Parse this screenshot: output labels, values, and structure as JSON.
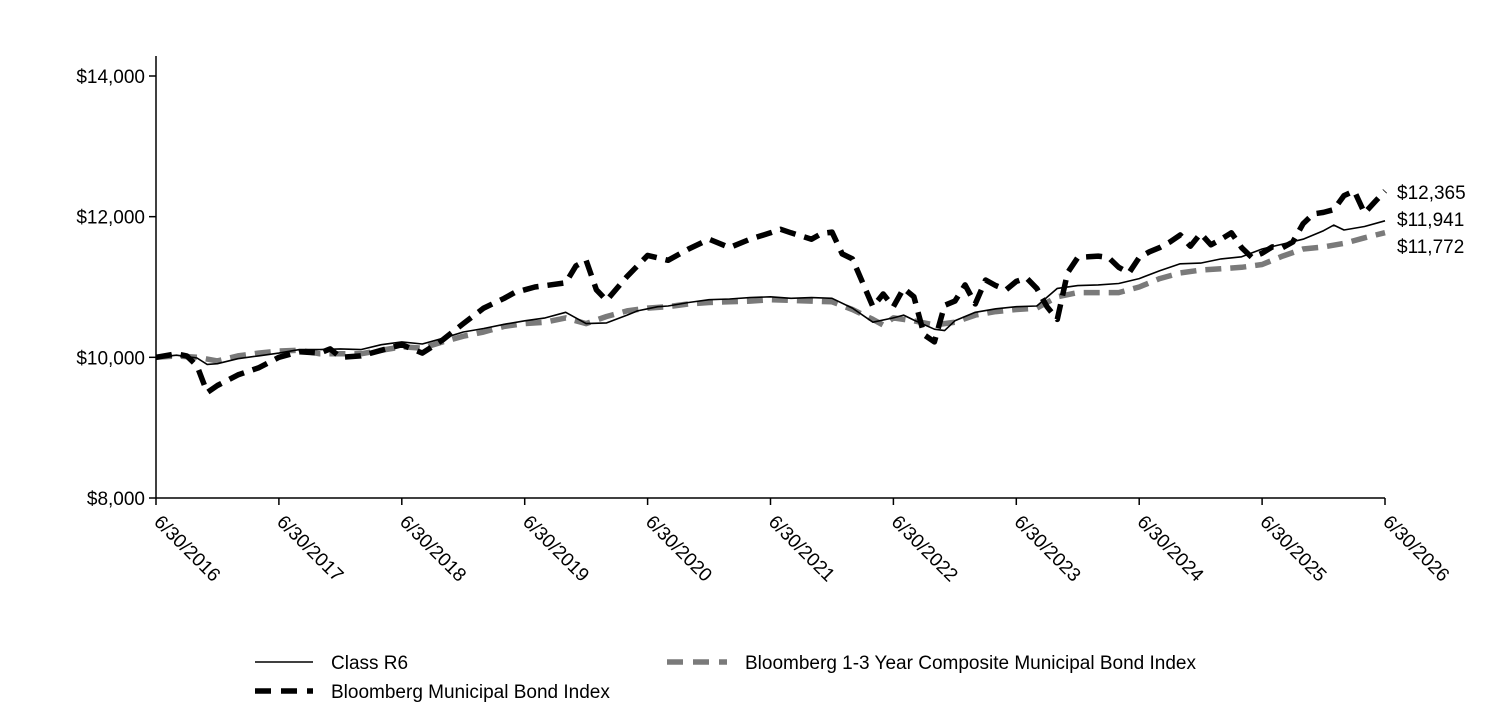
{
  "chart_data": {
    "type": "line",
    "title": "",
    "xlabel": "",
    "ylabel": "",
    "ylim": [
      8000,
      14000
    ],
    "y_ticks": [
      8000,
      10000,
      12000,
      14000
    ],
    "y_tick_labels": [
      "$8,000",
      "$10,000",
      "$12,000",
      "$14,000"
    ],
    "x_ticks": [
      0,
      12,
      24,
      36,
      48,
      60,
      72,
      84,
      96,
      108,
      120
    ],
    "x_tick_labels": [
      "6/30/2016",
      "6/30/2017",
      "6/30/2018",
      "6/30/2019",
      "6/30/2020",
      "6/30/2021",
      "6/30/2022",
      "6/30/2023",
      "6/30/2024",
      "6/30/2025",
      "6/30/2026"
    ],
    "x_unit": "months since 6/30/2016",
    "grid": false,
    "legend_position": "bottom",
    "series": [
      {
        "name": "Class R6",
        "style": "solid-thin",
        "color": "#000000",
        "end_label": "$11,941",
        "x": [
          0,
          2,
          4,
          5,
          6,
          8,
          10,
          12,
          14,
          16,
          18,
          20,
          22,
          24,
          26,
          28,
          30,
          32,
          34,
          36,
          38,
          40,
          42,
          44,
          46,
          47,
          48,
          49,
          50,
          52,
          54,
          56,
          58,
          60,
          62,
          64,
          66,
          68,
          70,
          72,
          73,
          74,
          76,
          77,
          78,
          80,
          82,
          84,
          86,
          88,
          90,
          92,
          94,
          96,
          98,
          100,
          102,
          104,
          106,
          108,
          110,
          112,
          114,
          115,
          116,
          118,
          120
        ],
        "values": [
          10000,
          10030,
          9990,
          9900,
          9910,
          9980,
          10020,
          10060,
          10110,
          10110,
          10120,
          10110,
          10180,
          10220,
          10190,
          10270,
          10360,
          10410,
          10470,
          10520,
          10560,
          10640,
          10480,
          10490,
          10600,
          10660,
          10690,
          10720,
          10730,
          10780,
          10820,
          10830,
          10850,
          10860,
          10840,
          10850,
          10840,
          10700,
          10500,
          10560,
          10600,
          10530,
          10400,
          10380,
          10520,
          10640,
          10690,
          10720,
          10730,
          10980,
          11020,
          11030,
          11050,
          11120,
          11230,
          11330,
          11340,
          11400,
          11430,
          11540,
          11610,
          11680,
          11800,
          11880,
          11810,
          11860,
          11941
        ]
      },
      {
        "name": "Bloomberg Municipal Bond Index",
        "style": "dashed-thick",
        "color": "#000000",
        "end_label": "$12,365",
        "x": [
          0,
          2,
          3,
          4,
          5,
          6,
          8,
          10,
          12,
          14,
          16,
          17,
          18,
          20,
          22,
          24,
          26,
          28,
          30,
          32,
          34,
          35,
          36,
          37,
          38,
          40,
          41,
          42,
          43,
          44,
          46,
          47,
          48,
          50,
          52,
          54,
          56,
          58,
          60,
          61,
          62,
          64,
          65,
          66,
          67,
          68,
          69,
          70,
          71,
          72,
          73,
          74,
          75,
          76,
          77,
          78,
          79,
          80,
          81,
          82,
          83,
          84,
          85,
          86,
          87,
          88,
          89,
          90,
          91,
          92,
          93,
          94,
          95,
          96,
          97,
          98,
          99,
          100,
          101,
          102,
          103,
          104,
          105,
          106,
          107,
          108,
          109,
          110,
          111,
          112,
          113,
          114,
          115,
          116,
          117,
          118,
          119,
          120
        ],
        "values": [
          10000,
          10050,
          10020,
          9880,
          9500,
          9600,
          9750,
          9850,
          10000,
          10080,
          10060,
          10120,
          10000,
          10020,
          10100,
          10180,
          10060,
          10250,
          10480,
          10700,
          10840,
          10920,
          10960,
          11000,
          11020,
          11060,
          11300,
          11380,
          10960,
          10810,
          11150,
          11300,
          11450,
          11380,
          11540,
          11680,
          11560,
          11680,
          11770,
          11820,
          11770,
          11680,
          11760,
          11780,
          11470,
          11400,
          11060,
          10720,
          10900,
          10720,
          10980,
          10860,
          10320,
          10220,
          10740,
          10800,
          11030,
          10760,
          11100,
          11020,
          10960,
          11080,
          11130,
          10980,
          10720,
          10540,
          11200,
          11420,
          11430,
          11440,
          11420,
          11280,
          11200,
          11420,
          11500,
          11560,
          11640,
          11740,
          11580,
          11760,
          11600,
          11680,
          11770,
          11560,
          11420,
          11480,
          11570,
          11560,
          11640,
          11900,
          12040,
          12060,
          12100,
          12300,
          12365,
          12050,
          12210,
          12365
        ]
      },
      {
        "name": "Bloomberg 1-3 Year Composite Municipal Bond Index",
        "style": "dashed-gray",
        "color": "#7a7a7a",
        "end_label": "$11,772",
        "x": [
          0,
          2,
          4,
          6,
          8,
          10,
          12,
          14,
          16,
          18,
          20,
          22,
          24,
          26,
          28,
          30,
          32,
          34,
          36,
          38,
          40,
          42,
          44,
          46,
          48,
          50,
          52,
          54,
          56,
          58,
          60,
          62,
          64,
          66,
          68,
          70,
          71,
          72,
          74,
          76,
          78,
          80,
          82,
          84,
          86,
          88,
          90,
          92,
          94,
          96,
          98,
          100,
          102,
          104,
          106,
          108,
          110,
          112,
          114,
          116,
          118,
          120
        ],
        "values": [
          10000,
          10020,
          10000,
          9950,
          10020,
          10060,
          10090,
          10100,
          10050,
          10050,
          10050,
          10100,
          10150,
          10130,
          10220,
          10300,
          10360,
          10440,
          10480,
          10500,
          10560,
          10480,
          10580,
          10660,
          10700,
          10720,
          10760,
          10780,
          10790,
          10800,
          10820,
          10810,
          10800,
          10790,
          10680,
          10540,
          10460,
          10560,
          10520,
          10460,
          10500,
          10600,
          10650,
          10680,
          10700,
          10860,
          10920,
          10920,
          10920,
          11000,
          11120,
          11200,
          11240,
          11260,
          11280,
          11320,
          11440,
          11540,
          11570,
          11620,
          11700,
          11772
        ]
      }
    ]
  }
}
